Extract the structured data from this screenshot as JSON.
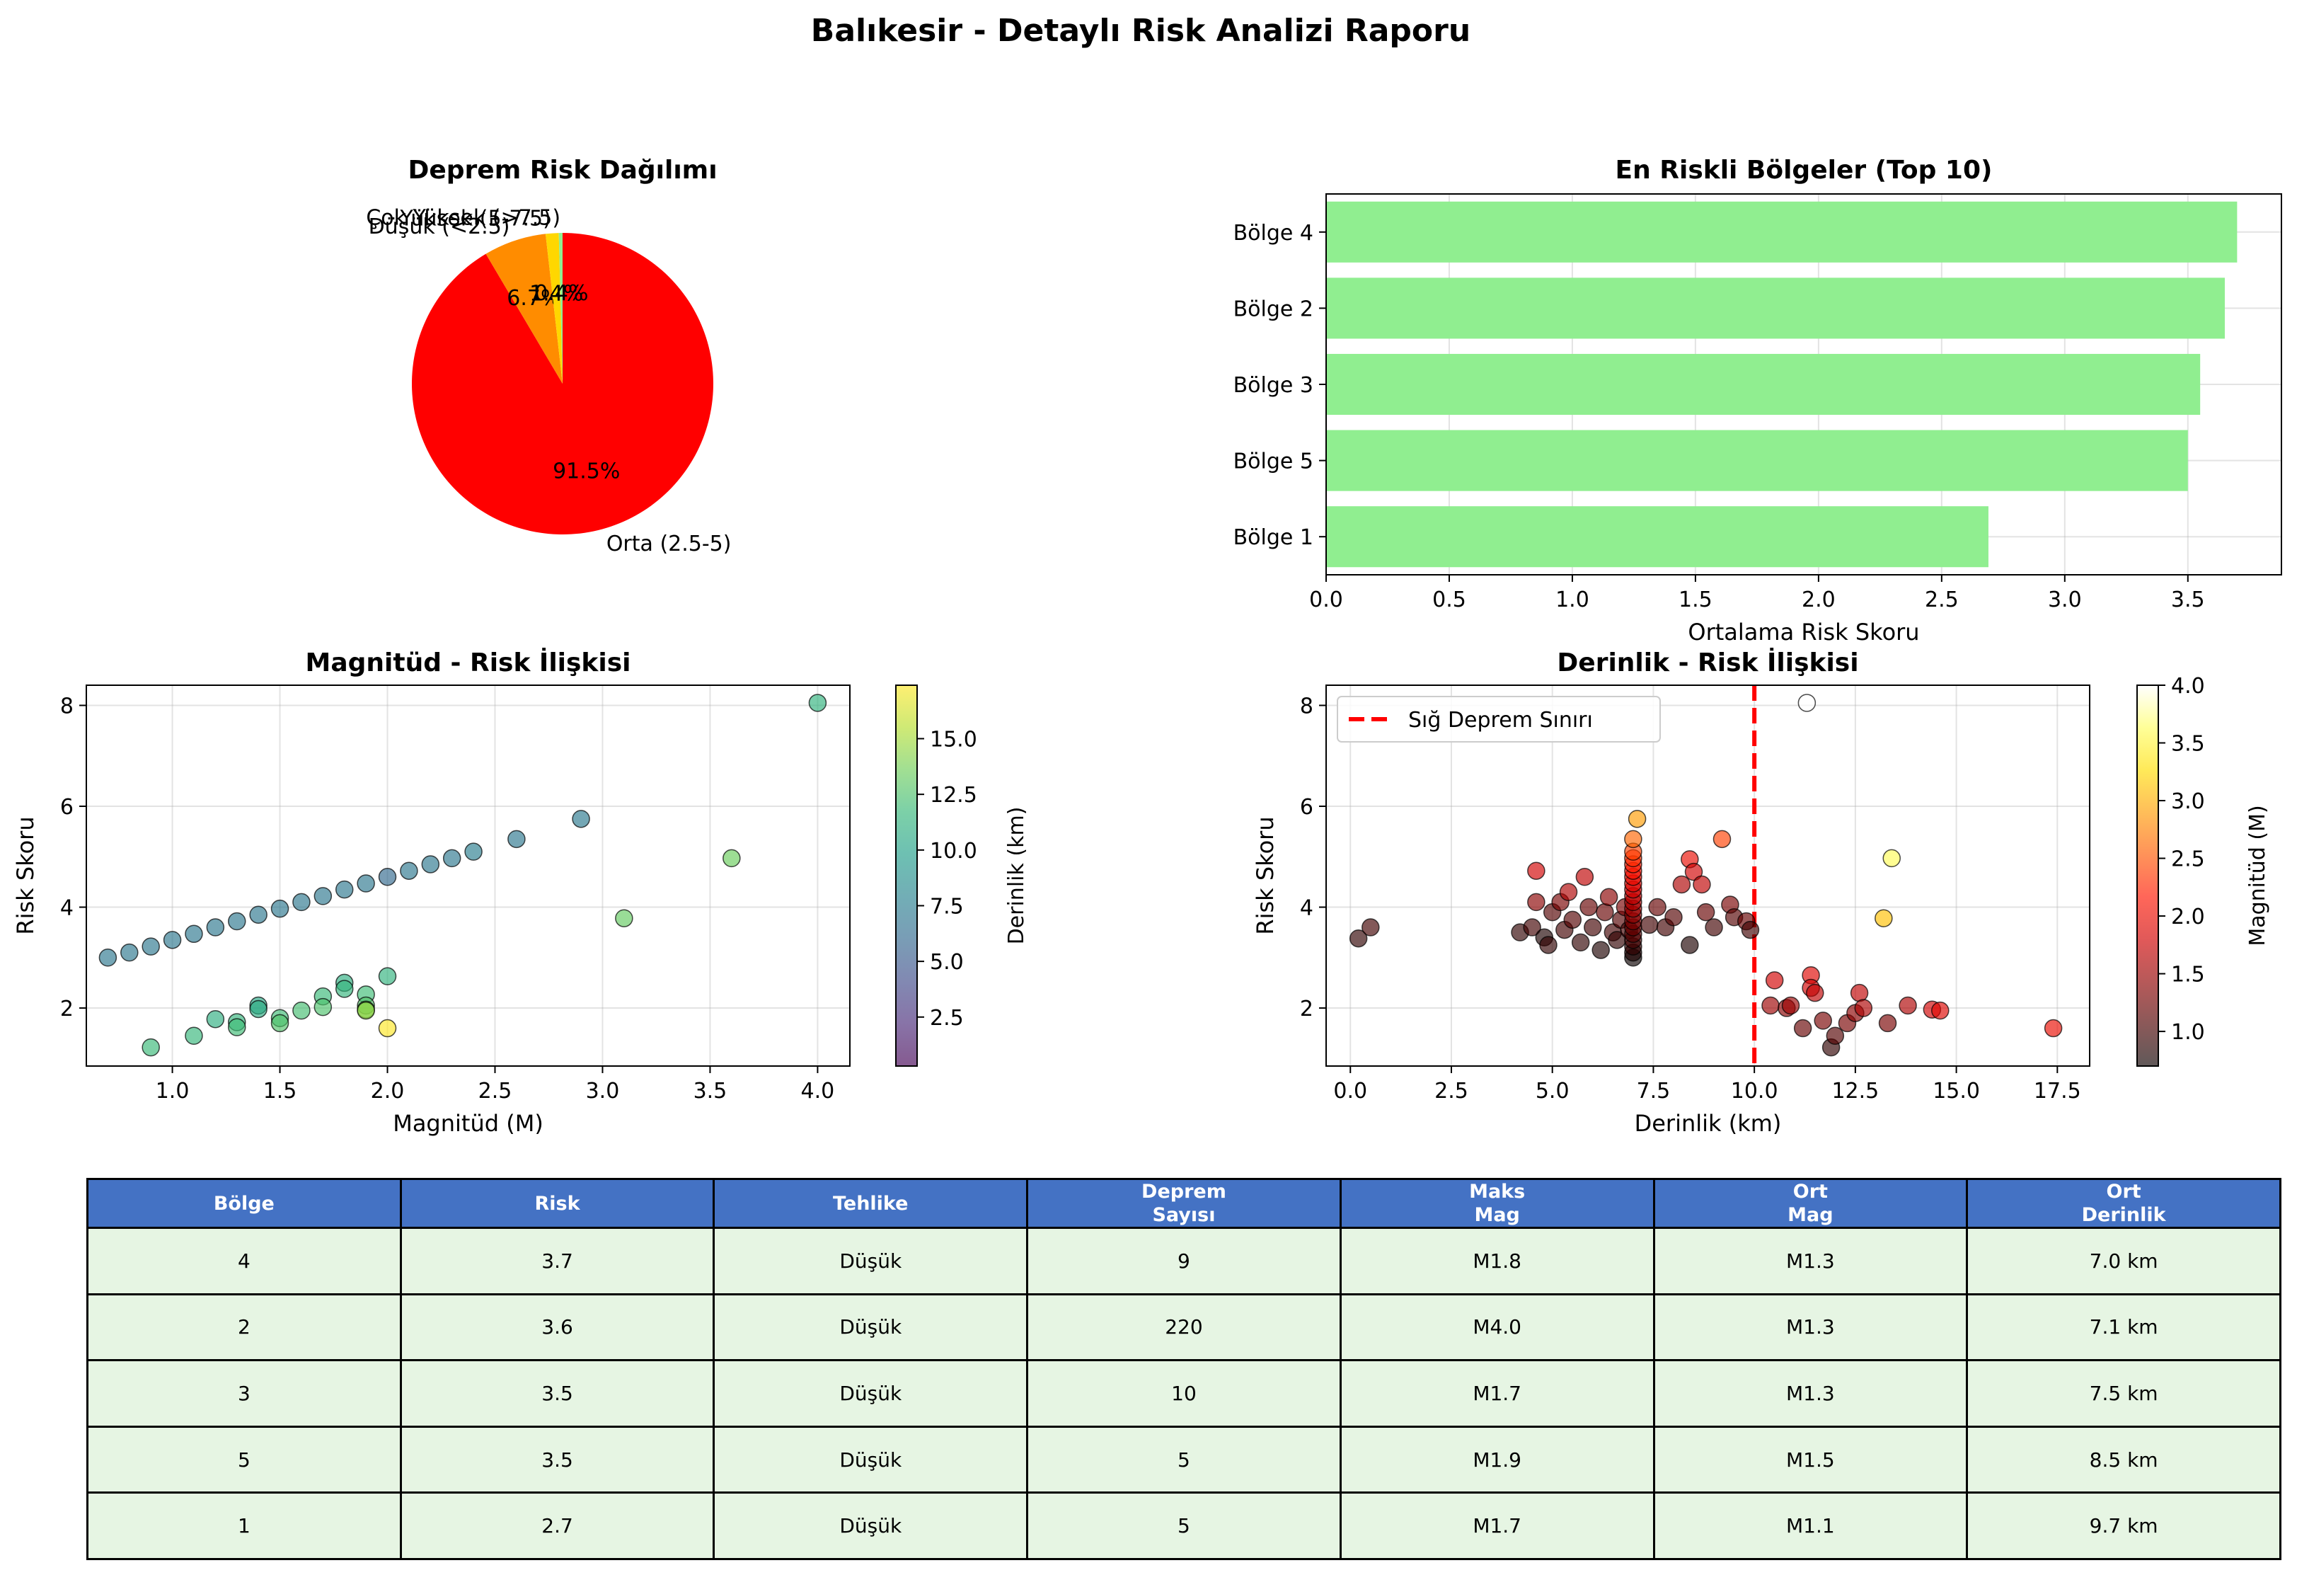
{
  "figure_title": "Balıkesir - Detaylı Risk Analizi Raporu",
  "colors": {
    "header_bg": "#4472C4",
    "row_bg": "#E6F5E3",
    "bar": "#90EE90",
    "threshold": "#FF0000"
  },
  "chart_data": [
    {
      "type": "pie",
      "title": "Deprem Risk Dağılımı",
      "slices": [
        {
          "label": "Orta (2.5-5)",
          "value": 91.5,
          "pct_label": "91.5%",
          "color": "#FF0000"
        },
        {
          "label": "Düşük (<2.5)",
          "value": 6.7,
          "pct_label": "6.7%",
          "color": "#FF8C00"
        },
        {
          "label": "Yüksek (5-7.5)",
          "value": 1.4,
          "pct_label": "1.4%",
          "color": "#FFD700"
        },
        {
          "label": "Çok Yüksek (>7.5)",
          "value": 0.4,
          "pct_label": "0.4%",
          "color": "#90EE90"
        }
      ]
    },
    {
      "type": "bar",
      "orientation": "horizontal",
      "title": "En Riskli Bölgeler (Top 10)",
      "xlabel": "Ortalama Risk Skoru",
      "categories": [
        "Bölge 4",
        "Bölge 2",
        "Bölge 3",
        "Bölge 5",
        "Bölge 1"
      ],
      "values": [
        3.7,
        3.65,
        3.55,
        3.5,
        2.69
      ],
      "xlim": [
        0,
        3.88
      ],
      "xticks": [
        0.0,
        0.5,
        1.0,
        1.5,
        2.0,
        2.5,
        3.0,
        3.5
      ],
      "grid": true
    },
    {
      "type": "scatter",
      "title": "Magnitüd - Risk İlişkisi",
      "xlabel": "Magnitüd (M)",
      "ylabel": "Risk Skoru",
      "xlim": [
        0.6,
        4.15
      ],
      "ylim": [
        0.85,
        8.4
      ],
      "xticks": [
        1.0,
        1.5,
        2.0,
        2.5,
        3.0,
        3.5,
        4.0
      ],
      "yticks": [
        2,
        4,
        6,
        8
      ],
      "colorbar": {
        "label": "Derinlik (km)",
        "colormap": "viridis",
        "range": [
          0.3,
          17.4
        ],
        "ticks": [
          2.5,
          5.0,
          7.5,
          10.0,
          12.5,
          15.0
        ]
      },
      "points": [
        {
          "x": 0.7,
          "y": 3.0,
          "c": 7.0
        },
        {
          "x": 0.8,
          "y": 3.1,
          "c": 7.0
        },
        {
          "x": 0.9,
          "y": 3.22,
          "c": 7.0
        },
        {
          "x": 1.0,
          "y": 3.35,
          "c": 7.0
        },
        {
          "x": 1.1,
          "y": 3.47,
          "c": 7.0
        },
        {
          "x": 1.2,
          "y": 3.6,
          "c": 7.0
        },
        {
          "x": 1.3,
          "y": 3.72,
          "c": 7.0
        },
        {
          "x": 1.4,
          "y": 3.85,
          "c": 7.0
        },
        {
          "x": 1.5,
          "y": 3.97,
          "c": 7.0
        },
        {
          "x": 1.6,
          "y": 4.1,
          "c": 7.0
        },
        {
          "x": 1.7,
          "y": 4.22,
          "c": 7.0
        },
        {
          "x": 1.8,
          "y": 4.35,
          "c": 7.0
        },
        {
          "x": 1.9,
          "y": 4.47,
          "c": 7.0
        },
        {
          "x": 2.0,
          "y": 4.6,
          "c": 6.0
        },
        {
          "x": 2.1,
          "y": 4.72,
          "c": 7.0
        },
        {
          "x": 2.2,
          "y": 4.85,
          "c": 7.0
        },
        {
          "x": 2.3,
          "y": 4.97,
          "c": 7.0
        },
        {
          "x": 2.4,
          "y": 5.1,
          "c": 7.5
        },
        {
          "x": 2.6,
          "y": 5.35,
          "c": 7.0
        },
        {
          "x": 2.9,
          "y": 5.75,
          "c": 7.2
        },
        {
          "x": 4.0,
          "y": 8.05,
          "c": 11.3
        },
        {
          "x": 3.6,
          "y": 4.97,
          "c": 13.4
        },
        {
          "x": 3.1,
          "y": 3.78,
          "c": 13.2
        },
        {
          "x": 2.0,
          "y": 2.63,
          "c": 11.3
        },
        {
          "x": 1.8,
          "y": 2.5,
          "c": 11.0
        },
        {
          "x": 1.8,
          "y": 2.38,
          "c": 11.5
        },
        {
          "x": 1.9,
          "y": 2.27,
          "c": 12.0
        },
        {
          "x": 1.7,
          "y": 2.23,
          "c": 11.8
        },
        {
          "x": 1.9,
          "y": 2.05,
          "c": 12.7
        },
        {
          "x": 1.9,
          "y": 1.97,
          "c": 13.8
        },
        {
          "x": 1.9,
          "y": 1.95,
          "c": 14.5
        },
        {
          "x": 1.7,
          "y": 2.02,
          "c": 12.5
        },
        {
          "x": 1.6,
          "y": 1.95,
          "c": 12.2
        },
        {
          "x": 1.5,
          "y": 1.8,
          "c": 12.0
        },
        {
          "x": 1.5,
          "y": 1.7,
          "c": 12.6
        },
        {
          "x": 1.4,
          "y": 2.05,
          "c": 10.4
        },
        {
          "x": 1.4,
          "y": 1.98,
          "c": 10.8
        },
        {
          "x": 1.3,
          "y": 1.72,
          "c": 11.5
        },
        {
          "x": 1.3,
          "y": 1.62,
          "c": 12.0
        },
        {
          "x": 1.2,
          "y": 1.78,
          "c": 11.0
        },
        {
          "x": 1.1,
          "y": 1.45,
          "c": 11.6
        },
        {
          "x": 0.9,
          "y": 1.22,
          "c": 11.8
        },
        {
          "x": 2.0,
          "y": 1.6,
          "c": 17.4
        }
      ]
    },
    {
      "type": "scatter",
      "title": "Derinlik - Risk İlişkisi",
      "xlabel": "Derinlik (km)",
      "ylabel": "Risk Skoru",
      "xlim": [
        -0.6,
        18.3
      ],
      "ylim": [
        0.85,
        8.4
      ],
      "xticks": [
        0.0,
        2.5,
        5.0,
        7.5,
        10.0,
        12.5,
        15.0,
        17.5
      ],
      "yticks": [
        2,
        4,
        6,
        8
      ],
      "threshold": {
        "x": 10,
        "label": "Sığ Deprem Sınırı"
      },
      "legend": "top-left",
      "colorbar": {
        "label": "Magnitüd (M)",
        "colormap": "hot",
        "range": [
          0.7,
          4.0
        ],
        "ticks": [
          1.0,
          1.5,
          2.0,
          2.5,
          3.0,
          3.5,
          4.0
        ]
      },
      "points": [
        {
          "x": 0.2,
          "y": 3.38,
          "c": 0.9
        },
        {
          "x": 0.5,
          "y": 3.6,
          "c": 1.0
        },
        {
          "x": 4.2,
          "y": 3.5,
          "c": 0.9
        },
        {
          "x": 4.5,
          "y": 3.6,
          "c": 1.0
        },
        {
          "x": 4.6,
          "y": 4.72,
          "c": 1.8
        },
        {
          "x": 4.6,
          "y": 4.1,
          "c": 1.4
        },
        {
          "x": 4.8,
          "y": 3.4,
          "c": 0.8
        },
        {
          "x": 4.9,
          "y": 3.25,
          "c": 0.9
        },
        {
          "x": 5.0,
          "y": 3.9,
          "c": 1.1
        },
        {
          "x": 5.2,
          "y": 4.1,
          "c": 1.3
        },
        {
          "x": 5.3,
          "y": 3.55,
          "c": 1.0
        },
        {
          "x": 5.4,
          "y": 4.3,
          "c": 1.6
        },
        {
          "x": 5.5,
          "y": 3.75,
          "c": 1.1
        },
        {
          "x": 5.7,
          "y": 3.3,
          "c": 0.9
        },
        {
          "x": 5.8,
          "y": 4.6,
          "c": 1.7
        },
        {
          "x": 5.9,
          "y": 4.0,
          "c": 1.2
        },
        {
          "x": 6.0,
          "y": 3.6,
          "c": 1.0
        },
        {
          "x": 6.2,
          "y": 3.15,
          "c": 0.8
        },
        {
          "x": 6.3,
          "y": 3.9,
          "c": 1.2
        },
        {
          "x": 6.4,
          "y": 4.2,
          "c": 1.4
        },
        {
          "x": 6.5,
          "y": 3.5,
          "c": 1.0
        },
        {
          "x": 6.6,
          "y": 3.35,
          "c": 0.9
        },
        {
          "x": 6.7,
          "y": 3.75,
          "c": 1.1
        },
        {
          "x": 6.8,
          "y": 4.0,
          "c": 1.3
        },
        {
          "x": 6.9,
          "y": 3.55,
          "c": 1.0
        },
        {
          "x": 7.0,
          "y": 3.0,
          "c": 0.7
        },
        {
          "x": 7.0,
          "y": 3.1,
          "c": 0.8
        },
        {
          "x": 7.0,
          "y": 3.22,
          "c": 0.9
        },
        {
          "x": 7.0,
          "y": 3.35,
          "c": 1.0
        },
        {
          "x": 7.0,
          "y": 3.47,
          "c": 1.1
        },
        {
          "x": 7.0,
          "y": 3.6,
          "c": 1.2
        },
        {
          "x": 7.0,
          "y": 3.72,
          "c": 1.3
        },
        {
          "x": 7.0,
          "y": 3.85,
          "c": 1.4
        },
        {
          "x": 7.0,
          "y": 3.97,
          "c": 1.5
        },
        {
          "x": 7.0,
          "y": 4.1,
          "c": 1.6
        },
        {
          "x": 7.0,
          "y": 4.22,
          "c": 1.7
        },
        {
          "x": 7.0,
          "y": 4.35,
          "c": 1.8
        },
        {
          "x": 7.0,
          "y": 4.47,
          "c": 1.9
        },
        {
          "x": 7.0,
          "y": 4.6,
          "c": 2.0
        },
        {
          "x": 7.0,
          "y": 4.72,
          "c": 2.1
        },
        {
          "x": 7.0,
          "y": 4.85,
          "c": 2.2
        },
        {
          "x": 7.0,
          "y": 4.97,
          "c": 2.3
        },
        {
          "x": 7.0,
          "y": 5.1,
          "c": 2.4
        },
        {
          "x": 7.0,
          "y": 5.35,
          "c": 2.6
        },
        {
          "x": 7.1,
          "y": 5.75,
          "c": 2.9
        },
        {
          "x": 7.4,
          "y": 3.65,
          "c": 1.0
        },
        {
          "x": 7.6,
          "y": 4.0,
          "c": 1.2
        },
        {
          "x": 7.8,
          "y": 3.6,
          "c": 1.0
        },
        {
          "x": 8.0,
          "y": 3.8,
          "c": 1.1
        },
        {
          "x": 8.2,
          "y": 4.45,
          "c": 1.6
        },
        {
          "x": 8.4,
          "y": 4.95,
          "c": 2.0
        },
        {
          "x": 8.4,
          "y": 3.25,
          "c": 0.8
        },
        {
          "x": 8.5,
          "y": 4.7,
          "c": 1.8
        },
        {
          "x": 8.7,
          "y": 4.45,
          "c": 1.7
        },
        {
          "x": 8.8,
          "y": 3.9,
          "c": 1.2
        },
        {
          "x": 9.0,
          "y": 3.6,
          "c": 1.0
        },
        {
          "x": 9.2,
          "y": 5.35,
          "c": 2.4
        },
        {
          "x": 9.4,
          "y": 4.05,
          "c": 1.3
        },
        {
          "x": 9.5,
          "y": 3.8,
          "c": 1.1
        },
        {
          "x": 9.8,
          "y": 3.72,
          "c": 1.2
        },
        {
          "x": 9.9,
          "y": 3.55,
          "c": 1.0
        },
        {
          "x": 10.4,
          "y": 2.05,
          "c": 1.5
        },
        {
          "x": 10.5,
          "y": 2.55,
          "c": 1.8
        },
        {
          "x": 10.8,
          "y": 2.0,
          "c": 1.4
        },
        {
          "x": 10.9,
          "y": 2.05,
          "c": 1.5
        },
        {
          "x": 11.2,
          "y": 1.6,
          "c": 1.2
        },
        {
          "x": 11.3,
          "y": 8.05,
          "c": 4.0
        },
        {
          "x": 11.4,
          "y": 2.65,
          "c": 1.9
        },
        {
          "x": 11.4,
          "y": 2.4,
          "c": 1.8
        },
        {
          "x": 11.5,
          "y": 2.3,
          "c": 1.7
        },
        {
          "x": 11.7,
          "y": 1.75,
          "c": 1.3
        },
        {
          "x": 11.9,
          "y": 1.22,
          "c": 0.9
        },
        {
          "x": 12.0,
          "y": 1.45,
          "c": 1.1
        },
        {
          "x": 12.3,
          "y": 1.7,
          "c": 1.3
        },
        {
          "x": 12.5,
          "y": 1.9,
          "c": 1.4
        },
        {
          "x": 12.6,
          "y": 2.3,
          "c": 1.7
        },
        {
          "x": 12.7,
          "y": 2.0,
          "c": 1.6
        },
        {
          "x": 13.2,
          "y": 3.78,
          "c": 3.1
        },
        {
          "x": 13.3,
          "y": 1.7,
          "c": 1.3
        },
        {
          "x": 13.4,
          "y": 4.97,
          "c": 3.6
        },
        {
          "x": 13.8,
          "y": 2.05,
          "c": 1.6
        },
        {
          "x": 14.4,
          "y": 1.97,
          "c": 1.8
        },
        {
          "x": 14.6,
          "y": 1.95,
          "c": 1.9
        },
        {
          "x": 17.4,
          "y": 1.6,
          "c": 2.0
        }
      ]
    }
  ],
  "table": {
    "headers": [
      [
        "Bölge"
      ],
      [
        "Risk"
      ],
      [
        "Tehlike"
      ],
      [
        "Deprem",
        "Sayısı"
      ],
      [
        "Maks",
        "Mag"
      ],
      [
        "Ort",
        "Mag"
      ],
      [
        "Ort",
        "Derinlik"
      ]
    ],
    "rows": [
      [
        "4",
        "3.7",
        "Düşük",
        "9",
        "M1.8",
        "M1.3",
        "7.0 km"
      ],
      [
        "2",
        "3.6",
        "Düşük",
        "220",
        "M4.0",
        "M1.3",
        "7.1 km"
      ],
      [
        "3",
        "3.5",
        "Düşük",
        "10",
        "M1.7",
        "M1.3",
        "7.5 km"
      ],
      [
        "5",
        "3.5",
        "Düşük",
        "5",
        "M1.9",
        "M1.5",
        "8.5 km"
      ],
      [
        "1",
        "2.7",
        "Düşük",
        "5",
        "M1.7",
        "M1.1",
        "9.7 km"
      ]
    ]
  }
}
